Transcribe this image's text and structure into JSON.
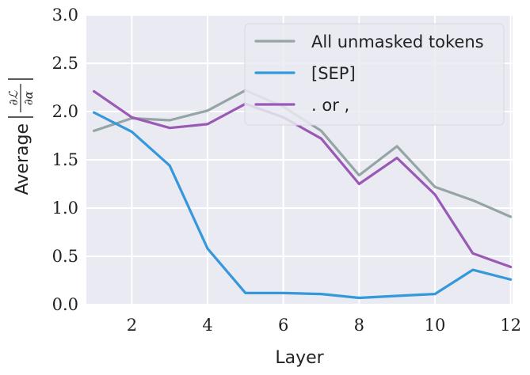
{
  "chart_data": {
    "type": "line",
    "xlabel": "Layer",
    "ylabel": "Average",
    "ylabel_math": {
      "numerator": "∂ℒ",
      "denominator": "∂α"
    },
    "xlim": [
      0.8,
      12.05
    ],
    "ylim": [
      0,
      3.0
    ],
    "xticks": [
      2,
      4,
      6,
      8,
      10,
      12
    ],
    "yticks": [
      "0.0",
      "0.5",
      "1.0",
      "1.5",
      "2.0",
      "2.5",
      "3.0"
    ],
    "grid": true,
    "legend_position": "top-right",
    "x": [
      1,
      2,
      3,
      4,
      5,
      6,
      7,
      8,
      9,
      10,
      11,
      12
    ],
    "series": [
      {
        "name": "All unmasked tokens",
        "color": "#95a5a6",
        "values": [
          1.8,
          1.93,
          1.91,
          2.01,
          2.22,
          2.05,
          1.8,
          1.34,
          1.64,
          1.22,
          1.08,
          0.91
        ]
      },
      {
        "name": "[SEP]",
        "color": "#3498db",
        "values": [
          1.99,
          1.79,
          1.44,
          0.58,
          0.12,
          0.12,
          0.11,
          0.07,
          0.09,
          0.11,
          0.36,
          0.26
        ]
      },
      {
        "name": ". or ,",
        "color": "#9b59b6",
        "values": [
          2.21,
          1.94,
          1.83,
          1.87,
          2.08,
          1.94,
          1.72,
          1.25,
          1.52,
          1.14,
          0.53,
          0.39
        ]
      }
    ]
  }
}
